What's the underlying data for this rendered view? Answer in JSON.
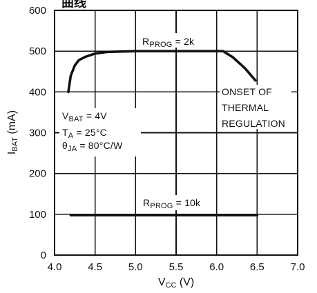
{
  "chart_data": {
    "type": "line",
    "title_fragment": "曲线",
    "xlabel": "Vcc (V)",
    "ylabel": "IBAT (mA)",
    "xlim": [
      4.0,
      7.0
    ],
    "ylim": [
      0,
      600
    ],
    "x_ticks": [
      4.0,
      4.5,
      5.0,
      5.5,
      6.0,
      6.5,
      7.0
    ],
    "x_tick_labels": [
      "4.0",
      "4.5",
      "5.0",
      "5.5",
      "6.0",
      "6.5",
      "7.0"
    ],
    "y_ticks": [
      0,
      100,
      200,
      300,
      400,
      500,
      600
    ],
    "y_tick_labels": [
      "0",
      "100",
      "200",
      "300",
      "400",
      "500",
      "600"
    ],
    "grid": true,
    "series": [
      {
        "label": "RPROG = 2k",
        "x": [
          4.17,
          4.2,
          4.25,
          4.3,
          4.38,
          4.5,
          4.65,
          5.0,
          5.5,
          6.0,
          6.08,
          6.2,
          6.35,
          6.48
        ],
        "y": [
          400,
          440,
          465,
          478,
          486,
          494,
          498,
          500,
          500,
          500,
          500,
          485,
          458,
          428
        ],
        "color": "#111111"
      },
      {
        "label": "RPROG = 10k",
        "x": [
          4.2,
          6.5
        ],
        "y": [
          98,
          98
        ],
        "color": "#111111"
      }
    ],
    "annotations": [
      {
        "id": "conditions",
        "lines": [
          "VBAT = 4V",
          "TA = 25°C",
          "θJA = 80°C/W"
        ]
      },
      {
        "id": "thermal",
        "lines": [
          "ONSET OF",
          "THERMAL",
          "REGULATION"
        ]
      }
    ]
  },
  "labels": {
    "rprog_2k": "RPROG = 2k",
    "rprog_10k": "RPROG = 10k",
    "vbat": "VBAT = 4V",
    "ta": "TA = 25°C",
    "theta": "θJA = 80°C/W",
    "onset_1": "ONSET OF",
    "onset_2": "THERMAL",
    "onset_3": "REGULATION"
  }
}
